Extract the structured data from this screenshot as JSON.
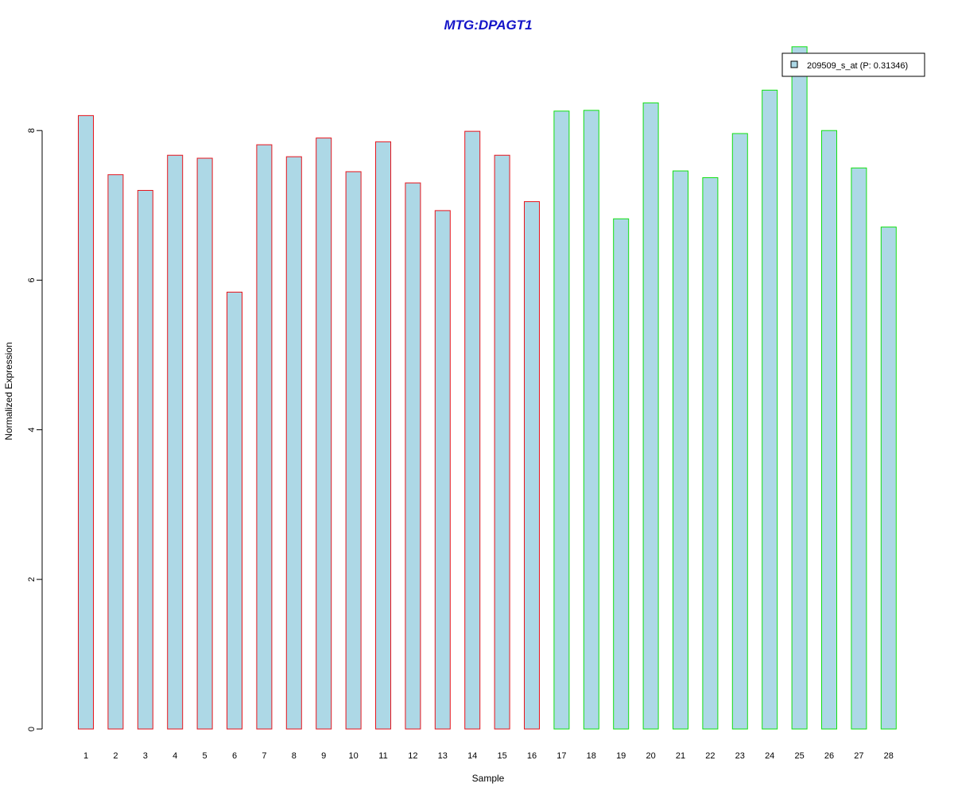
{
  "chart_data": {
    "type": "bar",
    "title": "MTG:DPAGT1",
    "xlabel": "Sample",
    "ylabel": "Normalized Expression",
    "ylim": [
      0,
      9.2
    ],
    "yticks": [
      0,
      2,
      4,
      6,
      8
    ],
    "categories": [
      "1",
      "2",
      "3",
      "4",
      "5",
      "6",
      "7",
      "8",
      "9",
      "10",
      "11",
      "12",
      "13",
      "14",
      "15",
      "16",
      "17",
      "18",
      "19",
      "20",
      "21",
      "22",
      "23",
      "24",
      "25",
      "26",
      "27",
      "28"
    ],
    "series": [
      {
        "name": "209509_s_at (P: 0.31346)",
        "values": [
          8.2,
          7.41,
          7.2,
          7.67,
          7.63,
          5.84,
          7.81,
          7.65,
          7.9,
          7.45,
          7.85,
          7.3,
          6.93,
          7.99,
          7.67,
          7.05,
          8.26,
          8.27,
          6.82,
          8.37,
          7.46,
          7.37,
          7.96,
          8.54,
          9.12,
          8.0,
          7.5,
          6.71
        ]
      }
    ],
    "groups": [
      {
        "samples": [
          1,
          2,
          3,
          4,
          5,
          6,
          7,
          8,
          9,
          10,
          11,
          12,
          13,
          14,
          15,
          16
        ],
        "border_color": "#e8141c"
      },
      {
        "samples": [
          17,
          18,
          19,
          20,
          21,
          22,
          23,
          24,
          25,
          26,
          27,
          28
        ],
        "border_color": "#12e012"
      }
    ],
    "bar_fill": "#add8e6",
    "title_color": "#1414c8",
    "legend": {
      "label": "209509_s_at (P: 0.31346)",
      "placement": "top-right"
    },
    "grid": false
  }
}
